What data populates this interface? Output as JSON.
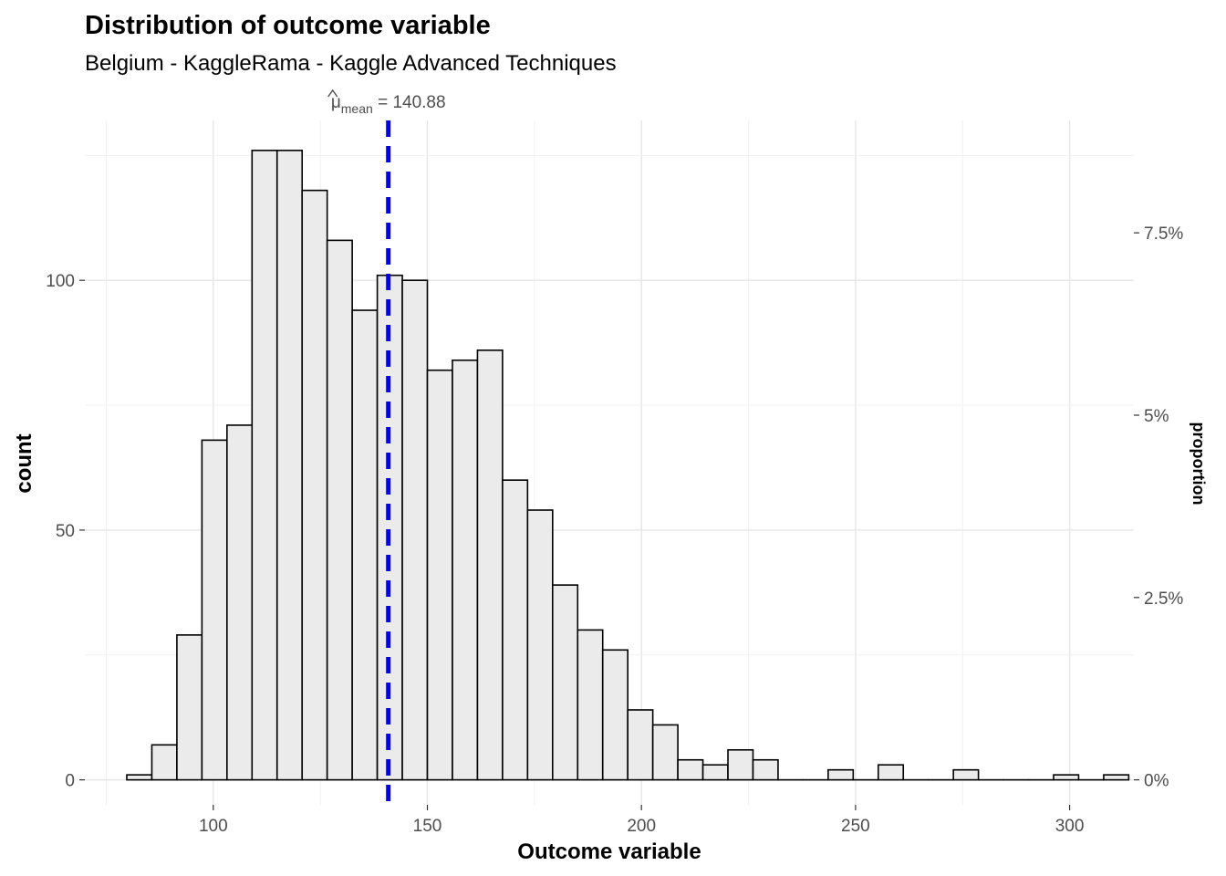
{
  "chart_data": {
    "type": "bar",
    "title": "Distribution of outcome variable",
    "subtitle": "Belgium - KaggleRama - Kaggle Advanced Techniques",
    "xlabel": "Outcome variable",
    "ylabel": "count",
    "y2label": "proportion",
    "xlim": [
      70,
      315
    ],
    "ylim": [
      -5,
      132
    ],
    "grid": true,
    "x_ticks": [
      100,
      150,
      200,
      250,
      300
    ],
    "y_ticks": [
      0,
      50,
      100
    ],
    "y2_ticks": [
      {
        "value": 0,
        "label": "0%"
      },
      {
        "value": 36.5,
        "label": "2.5%"
      },
      {
        "value": 73,
        "label": "5%"
      },
      {
        "value": 109.5,
        "label": "7.5%"
      }
    ],
    "bin_width": 5.85,
    "bin_start": 79.8,
    "values": [
      1,
      7,
      29,
      68,
      71,
      126,
      126,
      118,
      108,
      94,
      101,
      100,
      82,
      84,
      86,
      60,
      54,
      39,
      30,
      26,
      14,
      11,
      4,
      3,
      6,
      4,
      0,
      0,
      2,
      0,
      3,
      0,
      0,
      2,
      0,
      0,
      0,
      1,
      0,
      1
    ],
    "mean": {
      "value": 140.88,
      "symbol": "μ",
      "subscript": "mean",
      "text": " = 140.88",
      "color": "#0000ff"
    },
    "bar_fill": "#ebebeb",
    "bar_stroke": "#000000"
  }
}
